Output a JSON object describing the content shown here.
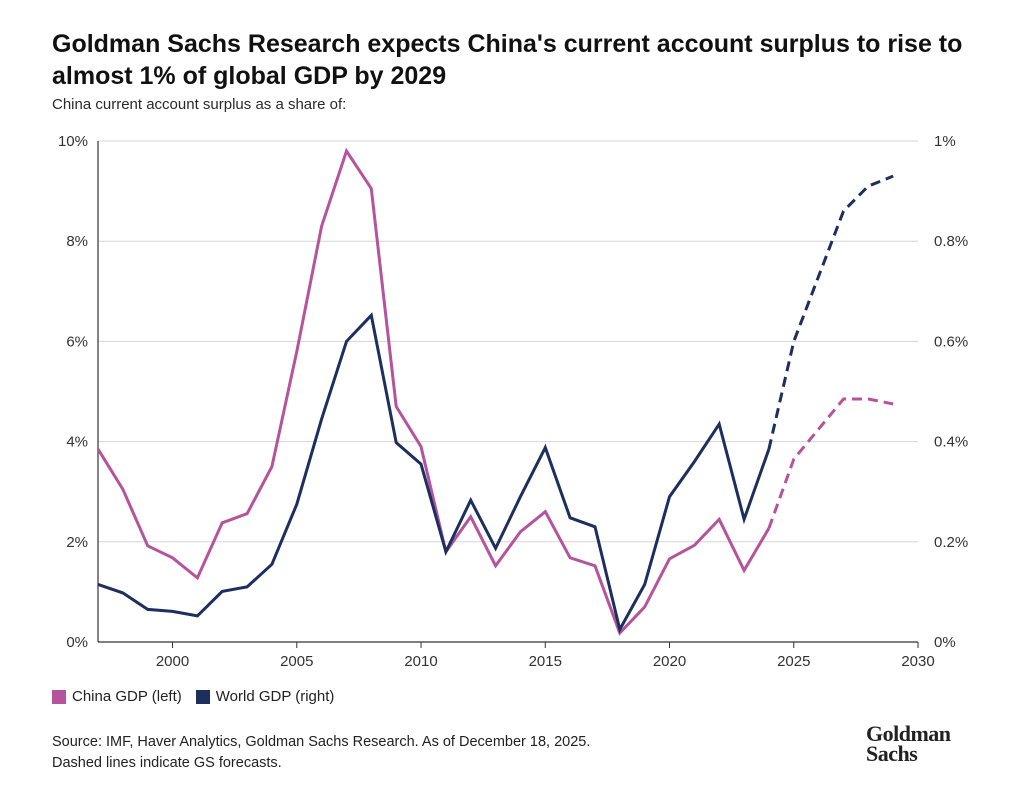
{
  "header": {
    "title": "Goldman Sachs Research expects China's current account surplus to rise to almost 1% of global GDP by 2029",
    "subtitle": "China current account surplus as a share of:"
  },
  "colors": {
    "china": "#b5539c",
    "world": "#1c2f5e",
    "grid": "#d6d6d6",
    "axis": "#333333"
  },
  "chart_data": {
    "type": "line",
    "title": "Goldman Sachs Research expects China's current account surplus to rise to almost 1% of global GDP by 2029",
    "subtitle": "China current account surplus as a share of:",
    "xlim": [
      1997,
      2030
    ],
    "x_ticks": [
      2000,
      2005,
      2010,
      2015,
      2020,
      2025,
      2030
    ],
    "x_tick_labels": [
      "2000",
      "2005",
      "2010",
      "2015",
      "2020",
      "2025",
      "2030"
    ],
    "y_left": {
      "lim": [
        0,
        10
      ],
      "ticks": [
        0,
        2,
        4,
        6,
        8,
        10
      ],
      "tick_labels": [
        "0%",
        "2%",
        "4%",
        "6%",
        "8%",
        "10%"
      ]
    },
    "y_right": {
      "lim": [
        0,
        1
      ],
      "ticks": [
        0,
        0.2,
        0.4,
        0.6,
        0.8,
        1
      ],
      "tick_labels": [
        "0%",
        "0.2%",
        "0.4%",
        "0.6%",
        "0.8%",
        "1%"
      ]
    },
    "grid": "horizontal",
    "legend_position": "bottom-left",
    "forecast_from": 2024,
    "series": [
      {
        "name": "China GDP (left)",
        "axis": "left",
        "color": "#b5539c",
        "x": [
          1997,
          1998,
          1999,
          2000,
          2001,
          2002,
          2003,
          2004,
          2005,
          2006,
          2007,
          2008,
          2009,
          2010,
          2011,
          2012,
          2013,
          2014,
          2015,
          2016,
          2017,
          2018,
          2019,
          2020,
          2021,
          2022,
          2023,
          2024,
          2025,
          2026,
          2027,
          2028,
          2029
        ],
        "values": [
          3.85,
          3.05,
          1.92,
          1.68,
          1.28,
          2.38,
          2.56,
          3.5,
          5.8,
          8.3,
          9.8,
          9.05,
          4.7,
          3.9,
          1.8,
          2.5,
          1.52,
          2.2,
          2.6,
          1.68,
          1.52,
          0.18,
          0.7,
          1.66,
          1.93,
          2.45,
          1.43,
          2.27,
          3.65,
          4.25,
          4.85,
          4.85,
          4.75
        ]
      },
      {
        "name": "World GDP (right)",
        "axis": "right",
        "color": "#1c2f5e",
        "x": [
          1997,
          1998,
          1999,
          2000,
          2001,
          2002,
          2003,
          2004,
          2005,
          2006,
          2007,
          2008,
          2009,
          2010,
          2011,
          2012,
          2013,
          2014,
          2015,
          2016,
          2017,
          2018,
          2019,
          2020,
          2021,
          2022,
          2023,
          2024,
          2025,
          2026,
          2027,
          2028,
          2029
        ],
        "values": [
          0.115,
          0.098,
          0.065,
          0.061,
          0.052,
          0.101,
          0.11,
          0.155,
          0.275,
          0.445,
          0.6,
          0.652,
          0.398,
          0.355,
          0.18,
          0.283,
          0.187,
          0.29,
          0.388,
          0.248,
          0.23,
          0.025,
          0.115,
          0.29,
          0.36,
          0.435,
          0.245,
          0.385,
          0.6,
          0.73,
          0.86,
          0.91,
          0.93
        ]
      }
    ]
  },
  "legend": {
    "china_label": "China GDP (left)",
    "world_label": "World GDP (right)"
  },
  "footer": {
    "source_line1": "Source: IMF, Haver Analytics, Goldman Sachs Research. As of December 18, 2025.",
    "source_line2": "Dashed lines indicate GS forecasts.",
    "logo_line1": "Goldman",
    "logo_line2": "Sachs"
  }
}
